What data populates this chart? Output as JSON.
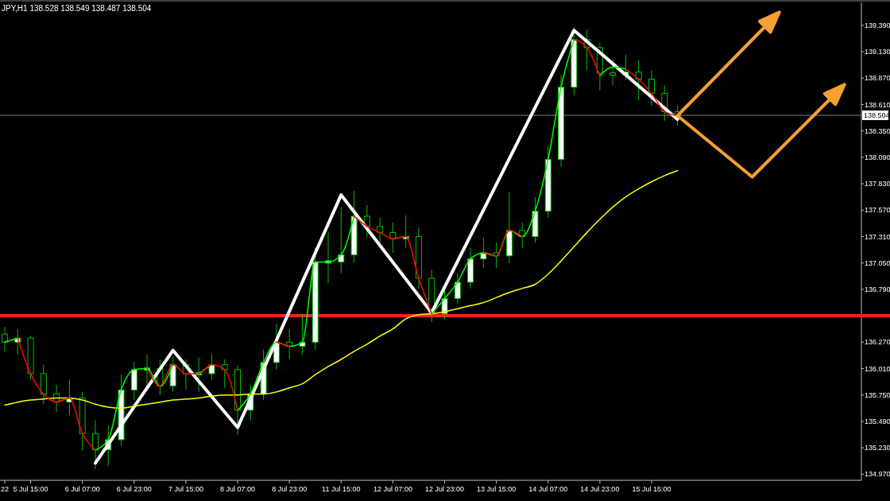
{
  "chart_data": {
    "type": "candlestick",
    "title": "JPY,H1 138.528 138.549 138.487 138.504",
    "categories": [
      "22",
      null,
      "5 Jul 15:00",
      null,
      null,
      null,
      "6 Jul 07:00",
      null,
      null,
      null,
      "6 Jul 23:00",
      null,
      null,
      null,
      "7 Jul 15:00",
      null,
      null,
      null,
      "8 Jul 07:00",
      null,
      null,
      null,
      "8 Jul 23:00",
      null,
      null,
      null,
      "11 Jul 15:00",
      null,
      null,
      null,
      "12 Jul 07:00",
      null,
      null,
      null,
      "12 Jul 23:00",
      null,
      null,
      null,
      "13 Jul 15:00",
      null,
      null,
      null,
      "14 Jul 07:00",
      null,
      null,
      null,
      "14 Jul 23:00",
      null,
      null,
      null,
      "15 Jul 15:00",
      null,
      null
    ],
    "ylim": [
      134.91,
      139.6
    ],
    "yticks": [
      {
        "value": 134.97,
        "label": "134.970"
      },
      {
        "value": 135.23,
        "label": "135.230"
      },
      {
        "value": 135.49,
        "label": "135.490"
      },
      {
        "value": 135.75,
        "label": "135.750"
      },
      {
        "value": 136.01,
        "label": "136.010"
      },
      {
        "value": 136.27,
        "label": "136.270"
      },
      {
        "value": 136.79,
        "label": "136.790"
      },
      {
        "value": 137.05,
        "label": "137.050"
      },
      {
        "value": 137.31,
        "label": "137.310"
      },
      {
        "value": 137.57,
        "label": "137.570"
      },
      {
        "value": 137.83,
        "label": "137.830"
      },
      {
        "value": 138.09,
        "label": "138.090"
      },
      {
        "value": 138.35,
        "label": "138.350"
      },
      {
        "value": 138.61,
        "label": "138.610"
      },
      {
        "value": 138.87,
        "label": "138.870"
      },
      {
        "value": 139.13,
        "label": "139.130"
      },
      {
        "value": 139.39,
        "label": "139.390"
      }
    ],
    "grid": false,
    "series": [
      {
        "color": "#00c000",
        "ohlc": [
          [
            136.35,
            136.42,
            136.18,
            136.27
          ],
          [
            136.27,
            136.4,
            136.15,
            136.31
          ],
          [
            136.31,
            136.33,
            135.9,
            135.96
          ],
          [
            135.96,
            136.05,
            135.66,
            135.76
          ],
          [
            135.76,
            135.85,
            135.58,
            135.68
          ],
          [
            135.68,
            135.9,
            135.55,
            135.72
          ],
          [
            135.72,
            135.78,
            135.2,
            135.37
          ],
          [
            135.37,
            135.5,
            135.02,
            135.21
          ],
          [
            135.21,
            135.45,
            135.05,
            135.31
          ],
          [
            135.31,
            135.95,
            135.25,
            135.8
          ],
          [
            135.8,
            136.08,
            135.7,
            136.0
          ],
          [
            136.0,
            136.15,
            135.85,
            136.01
          ],
          [
            136.01,
            136.1,
            135.75,
            135.84
          ],
          [
            135.84,
            136.13,
            135.78,
            136.05
          ],
          [
            136.05,
            136.1,
            135.8,
            135.96
          ],
          [
            135.96,
            136.12,
            135.78,
            135.96
          ],
          [
            135.96,
            136.15,
            135.9,
            136.05
          ],
          [
            136.05,
            136.1,
            135.82,
            136.0
          ],
          [
            136.0,
            136.04,
            135.36,
            135.6
          ],
          [
            135.6,
            135.85,
            135.5,
            135.76
          ],
          [
            135.76,
            136.2,
            135.7,
            136.07
          ],
          [
            136.07,
            136.45,
            136.0,
            136.27
          ],
          [
            136.27,
            136.4,
            136.1,
            136.23
          ],
          [
            136.23,
            136.55,
            136.15,
            136.27
          ],
          [
            136.27,
            137.2,
            136.2,
            137.06
          ],
          [
            137.06,
            137.35,
            136.85,
            137.06
          ],
          [
            137.06,
            137.6,
            136.95,
            137.13
          ],
          [
            137.13,
            137.76,
            137.05,
            137.51
          ],
          [
            137.51,
            137.62,
            137.3,
            137.41
          ],
          [
            137.41,
            137.5,
            137.25,
            137.35
          ],
          [
            137.35,
            137.45,
            137.15,
            137.29
          ],
          [
            137.29,
            137.52,
            137.2,
            137.31
          ],
          [
            137.31,
            137.4,
            136.8,
            136.9
          ],
          [
            136.9,
            136.98,
            136.47,
            136.55
          ],
          [
            136.55,
            136.8,
            136.5,
            136.7
          ],
          [
            136.7,
            136.95,
            136.65,
            136.86
          ],
          [
            136.86,
            137.2,
            136.8,
            137.09
          ],
          [
            137.09,
            137.3,
            137.0,
            137.15
          ],
          [
            137.15,
            137.25,
            137.0,
            137.12
          ],
          [
            137.12,
            137.75,
            137.05,
            137.37
          ],
          [
            137.37,
            137.45,
            137.2,
            137.31
          ],
          [
            137.31,
            137.7,
            137.25,
            137.56
          ],
          [
            137.56,
            138.2,
            137.5,
            138.07
          ],
          [
            138.07,
            138.9,
            138.0,
            138.78
          ],
          [
            138.78,
            139.37,
            138.7,
            139.25
          ],
          [
            139.25,
            139.35,
            138.95,
            139.17
          ],
          [
            139.17,
            139.22,
            138.75,
            138.92
          ],
          [
            138.92,
            139.05,
            138.8,
            138.9
          ],
          [
            138.9,
            139.1,
            138.85,
            138.93
          ],
          [
            138.93,
            139.05,
            138.65,
            138.86
          ],
          [
            138.86,
            138.95,
            138.6,
            138.72
          ],
          [
            138.72,
            138.8,
            138.45,
            138.54
          ],
          [
            138.54,
            138.6,
            138.4,
            138.5
          ]
        ]
      },
      {
        "type": "line",
        "color": "#ffff00",
        "values": [
          135.65,
          135.68,
          135.7,
          135.71,
          135.72,
          135.72,
          135.7,
          135.66,
          135.63,
          135.62,
          135.64,
          135.66,
          135.68,
          135.7,
          135.71,
          135.72,
          135.74,
          135.75,
          135.75,
          135.76,
          135.76,
          135.78,
          135.82,
          135.86,
          135.95,
          136.03,
          136.1,
          136.18,
          136.25,
          136.33,
          136.4,
          136.5,
          136.54,
          136.55,
          136.57,
          136.6,
          136.63,
          136.66,
          136.71,
          136.76,
          136.8,
          136.84,
          136.94,
          137.07,
          137.21,
          137.35,
          137.48,
          137.6,
          137.7,
          137.78,
          137.85,
          137.91,
          137.96
        ]
      },
      {
        "type": "line",
        "color": "#00ff00",
        "values": [
          136.27,
          136.31,
          null,
          null,
          135.68,
          135.72,
          null,
          135.21,
          135.31,
          135.8,
          136.0,
          136.01,
          135.84,
          136.05,
          null,
          135.96,
          136.05,
          null,
          135.6,
          135.76,
          136.07,
          136.27,
          136.23,
          136.27,
          137.06,
          137.06,
          137.13,
          137.51,
          null,
          null,
          137.29,
          137.31,
          null,
          136.55,
          136.7,
          136.86,
          137.09,
          137.15,
          137.12,
          137.37,
          137.31,
          137.56,
          138.07,
          138.78,
          139.25,
          null,
          138.89,
          138.98,
          138.96,
          null,
          null,
          null,
          null
        ]
      },
      {
        "type": "line",
        "color": "#ff0000",
        "values": [
          null,
          136.31,
          135.96,
          135.76,
          135.68,
          135.72,
          135.37,
          135.21,
          null,
          null,
          null,
          136.01,
          135.84,
          136.05,
          135.96,
          135.96,
          136.05,
          136.0,
          135.6,
          null,
          null,
          136.27,
          136.23,
          null,
          null,
          null,
          null,
          137.51,
          137.41,
          137.35,
          137.29,
          137.31,
          136.9,
          136.55,
          null,
          null,
          null,
          137.15,
          137.12,
          137.37,
          137.31,
          null,
          null,
          null,
          139.25,
          139.17,
          138.89,
          null,
          138.96,
          138.86,
          138.72,
          138.54,
          138.5
        ]
      },
      {
        "type": "line",
        "color": "#ffffff",
        "values": [
          null,
          null,
          null,
          null,
          null,
          null,
          null,
          135.08,
          null,
          null,
          null,
          null,
          null,
          136.19,
          null,
          null,
          null,
          null,
          135.43,
          null,
          null,
          null,
          null,
          null,
          null,
          null,
          137.72,
          null,
          null,
          null,
          null,
          null,
          null,
          136.56,
          null,
          null,
          null,
          null,
          null,
          null,
          null,
          null,
          null,
          null,
          139.34,
          null,
          null,
          null,
          null,
          null,
          null,
          null,
          138.465
        ]
      }
    ],
    "ref_lines": [
      {
        "axis": "y",
        "value": 136.53,
        "color": "#ff2020"
      },
      {
        "axis": "y",
        "value": 138.504,
        "label": "138.504",
        "color": "#808080"
      }
    ]
  }
}
